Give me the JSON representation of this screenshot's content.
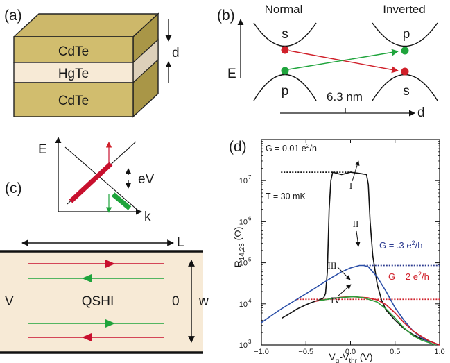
{
  "panels": {
    "a": {
      "label": "(a)",
      "layers": [
        "CdTe",
        "HgTe",
        "CdTe"
      ],
      "thickness_label": "d",
      "colors": {
        "cdte_front": "#d1bd6e",
        "cdte_top": "#c8b465",
        "cdte_side": "#a99647",
        "hgte_front": "#f7ead6",
        "hgte_side": "#ddd0ba"
      }
    },
    "b": {
      "label": "(b)",
      "normal_label": "Normal",
      "inverted_label": "Inverted",
      "energy_label": "E",
      "normal_top": "s",
      "normal_bottom": "p",
      "inverted_top": "p",
      "inverted_bottom": "s",
      "crossover_label": "6.3 nm",
      "axis_label": "d",
      "colors": {
        "s_state": "#d0202a",
        "p_state": "#1fa43c"
      }
    },
    "c": {
      "label": "(c)",
      "energy_label": "E",
      "momentum_label": "k",
      "bias_label": "eV",
      "length_label": "L",
      "width_label": "w",
      "left_contact": "V",
      "right_contact": "0",
      "device_label": "QSHI",
      "colors": {
        "device_bg": "#f7ead6",
        "red": "#c8102e",
        "green": "#1fa43c"
      }
    },
    "d": {
      "label": "(d)",
      "temperature": "T = 30 mK",
      "ylabel_main": "R",
      "ylabel_sub": "14,23",
      "ylabel_unit": " (Ω)",
      "xlabel_main": "V",
      "xlabel_sub1": "g",
      "xlabel_mid": "-V",
      "xlabel_sub2": "thr",
      "xlabel_unit": " (V)",
      "conductance_lines": [
        {
          "prefix": "G = 0.01 e",
          "suffix": "/h",
          "color": "#111111"
        },
        {
          "prefix": "G = .3 e",
          "suffix": "/h",
          "color": "#2b3a8f"
        },
        {
          "prefix": "G = 2 e",
          "suffix": "/h",
          "color": "#d0202a"
        }
      ],
      "roman_labels": [
        "I",
        "II",
        "III",
        "IV"
      ]
    }
  },
  "chart_data": {
    "type": "line",
    "title": "",
    "xlabel": "Vg-Vthr (V)",
    "ylabel": "R14,23 (Ω)",
    "xlim": [
      -1.0,
      1.0
    ],
    "ylim": [
      1000,
      100000000
    ],
    "yscale": "log",
    "x_ticks": [
      -1.0,
      -0.5,
      0.0,
      0.5,
      1.0
    ],
    "x_tick_labels": [
      "−1.0",
      "−0.5",
      "0.0",
      "0.5",
      "1.0"
    ],
    "y_ticks": [
      1000,
      10000,
      100000,
      1000000,
      10000000
    ],
    "y_tick_mantissa": "10",
    "y_tick_exponents": [
      "3",
      "4",
      "5",
      "6",
      "7"
    ],
    "grid": false,
    "reference_lines": [
      {
        "label": "G = 0.01 e2/h",
        "y": 16000000,
        "x_range": [
          -0.78,
          0.02
        ],
        "color": "#111111"
      },
      {
        "label": "G = .3 e2/h",
        "y": 86000,
        "x_range": [
          0.15,
          1.0
        ],
        "color": "#2b3a8f"
      },
      {
        "label": "G = 2 e2/h",
        "y": 12900,
        "x_range": [
          -0.6,
          1.0
        ],
        "color": "#d0202a"
      }
    ],
    "series": [
      {
        "name": "I",
        "color": "#111111",
        "x": [
          -0.77,
          -0.7,
          -0.6,
          -0.5,
          -0.45,
          -0.4,
          -0.35,
          -0.3,
          -0.28,
          -0.26,
          -0.24,
          -0.22,
          -0.2,
          -0.1,
          0.0,
          0.1,
          0.18,
          0.2,
          0.22,
          0.25,
          0.3,
          0.35,
          0.4,
          0.5,
          0.6,
          0.7,
          0.8,
          0.9,
          0.95
        ],
        "y": [
          4500,
          5500,
          7500,
          9500,
          10500,
          11500,
          12500,
          14000,
          18000,
          60000,
          2000000,
          10000000,
          16000000,
          14000000,
          16000000,
          15000000,
          14000000,
          8000000,
          1000000,
          150000,
          30000,
          12000,
          7000,
          4000,
          2500,
          1800,
          1400,
          1200,
          1100
        ]
      },
      {
        "name": "II",
        "color": "#2b4fa8",
        "x": [
          -1.0,
          -0.8,
          -0.6,
          -0.4,
          -0.3,
          -0.2,
          -0.1,
          0.0,
          0.1,
          0.15,
          0.2,
          0.3,
          0.4,
          0.5,
          0.6,
          0.7,
          0.8,
          0.9,
          0.95
        ],
        "y": [
          3500,
          7000,
          13000,
          24000,
          33000,
          45000,
          60000,
          75000,
          86000,
          86000,
          80000,
          45000,
          20000,
          8000,
          4000,
          2200,
          1500,
          1100,
          1000
        ]
      },
      {
        "name": "III",
        "color": "#d0202a",
        "x": [
          -0.4,
          -0.3,
          -0.2,
          -0.1,
          0.0,
          0.1,
          0.2,
          0.3,
          0.4,
          0.5,
          0.6,
          0.7,
          0.8,
          0.9,
          1.0
        ],
        "y": [
          11500,
          12500,
          13500,
          14500,
          15000,
          14500,
          14000,
          12500,
          9500,
          6000,
          3500,
          2200,
          1600,
          1200,
          1000
        ]
      },
      {
        "name": "IV",
        "color": "#2e9e3a",
        "x": [
          -0.35,
          -0.25,
          -0.15,
          -0.05,
          0.05,
          0.15,
          0.2,
          0.3,
          0.4,
          0.5,
          0.6,
          0.7,
          0.8,
          0.9,
          0.95
        ],
        "y": [
          12000,
          13000,
          14000,
          14500,
          15000,
          14000,
          13000,
          11000,
          7500,
          4500,
          2600,
          1700,
          1300,
          1100,
          1000
        ]
      }
    ]
  }
}
